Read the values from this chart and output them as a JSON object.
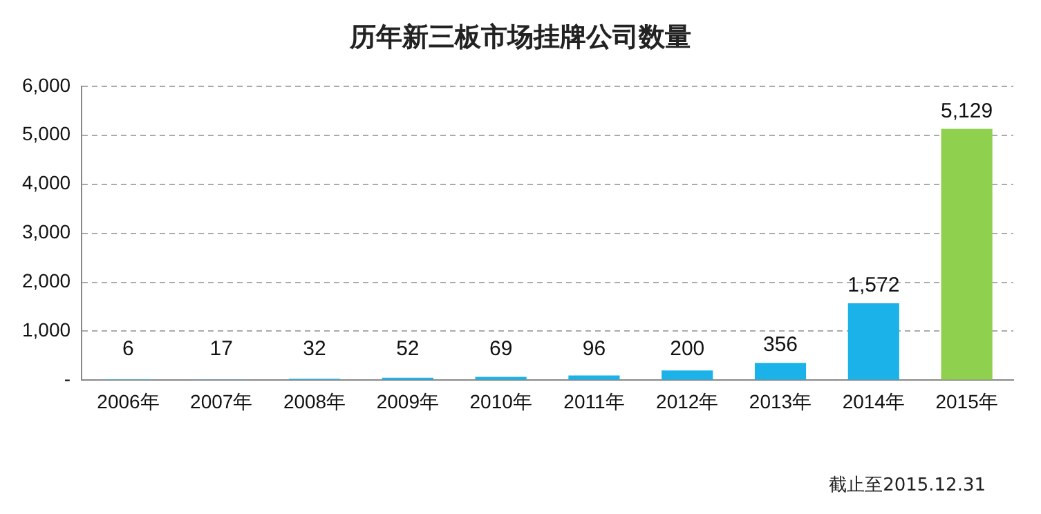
{
  "chart_data": {
    "type": "bar",
    "title": "历年新三板市场挂牌公司数量",
    "categories": [
      "2006年",
      "2007年",
      "2008年",
      "2009年",
      "2010年",
      "2011年",
      "2012年",
      "2013年",
      "2014年",
      "2015年"
    ],
    "values": [
      6,
      17,
      32,
      52,
      69,
      96,
      200,
      356,
      1572,
      5129
    ],
    "colors": [
      "#1ab2e8",
      "#1ab2e8",
      "#1ab2e8",
      "#1ab2e8",
      "#1ab2e8",
      "#1ab2e8",
      "#1ab2e8",
      "#1ab2e8",
      "#1ab2e8",
      "#8fd14f"
    ],
    "ylim": [
      0,
      6000
    ],
    "yticks": [
      {
        "value": 0,
        "label": "-"
      },
      {
        "value": 1000,
        "label": "1,000"
      },
      {
        "value": 2000,
        "label": "2,000"
      },
      {
        "value": 3000,
        "label": "3,000"
      },
      {
        "value": 4000,
        "label": "4,000"
      },
      {
        "value": 5000,
        "label": "5,000"
      },
      {
        "value": 6000,
        "label": "6,000"
      }
    ],
    "value_labels": [
      "6",
      "17",
      "32",
      "52",
      "69",
      "96",
      "200",
      "356",
      "1,572",
      "5,129"
    ],
    "grid": "y",
    "annotations": [
      "截止至2015.12.31"
    ]
  }
}
